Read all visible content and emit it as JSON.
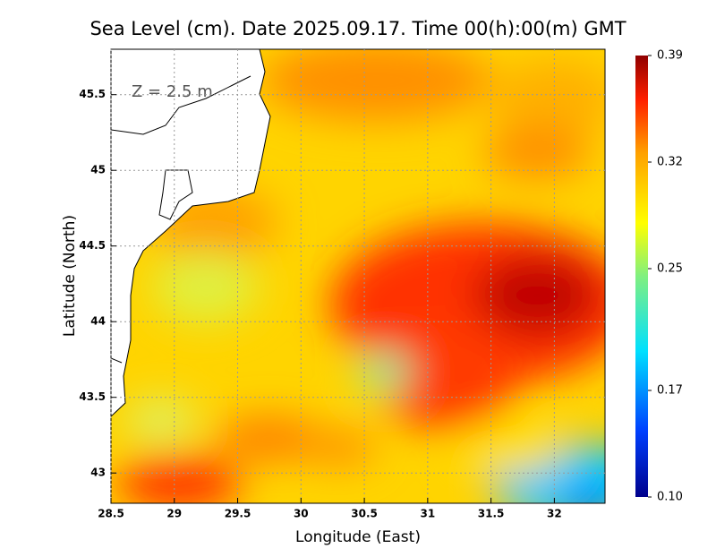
{
  "chart_data": {
    "type": "heatmap",
    "title": "Sea Level (cm). Date 2025.09.17. Time 00(h):00(m) GMT",
    "annotation": "Z = 2.5 m",
    "xlabel": "Longitude (East)",
    "ylabel": "Latitude (North)",
    "xlim": [
      28.5,
      32.4
    ],
    "ylim": [
      42.8,
      45.8
    ],
    "xticks": [
      28.5,
      29,
      29.5,
      30,
      30.5,
      31,
      31.5,
      32
    ],
    "yticks": [
      43,
      43.5,
      44,
      44.5,
      45,
      45.5
    ],
    "grid": true,
    "clim": [
      0.1,
      0.39
    ],
    "cticks": [
      {
        "value": 0.1,
        "label": "0.10"
      },
      0.17,
      0.25,
      0.32,
      0.39
    ]
  }
}
